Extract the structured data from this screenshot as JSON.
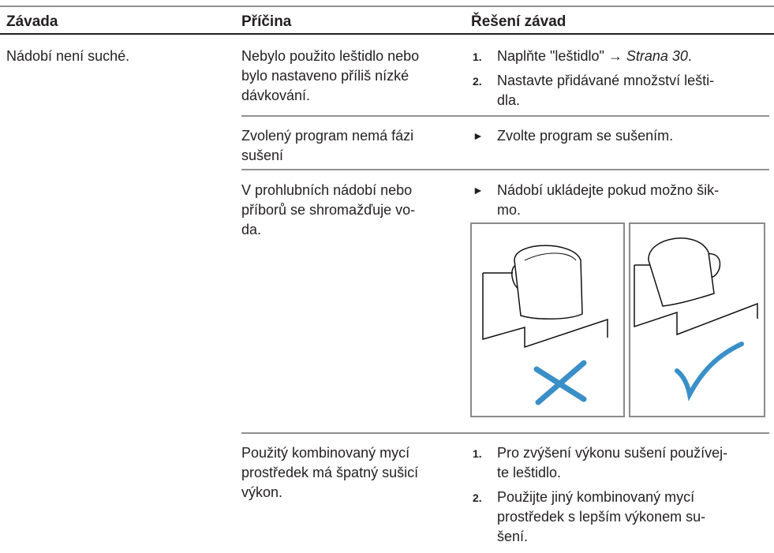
{
  "table": {
    "headers": [
      "Závada",
      "Příčina",
      "Řešení závad"
    ],
    "fault": [
      "Nádobí není suché."
    ],
    "causes": [
      {
        "text": [
          "Nebylo použito leštidlo nebo",
          "bylo nastaveno příliš nízké",
          "dávkování."
        ],
        "solutions": [
          {
            "marker": "1.",
            "lines": [
              {
                "text": "Naplňte \"leštidlo\" → ",
                "ref": "Strana 30",
                "end": "."
              }
            ]
          },
          {
            "marker": "2.",
            "lines": [
              "Nastavte přidávané množství lešti-",
              "dla."
            ]
          }
        ]
      },
      {
        "text": [
          "Zvolený program nemá fázi",
          "sušení"
        ],
        "solutions": [
          {
            "marker": "►",
            "lines": [
              "Zvolte program se sušením."
            ]
          }
        ]
      },
      {
        "text": [
          "V prohlubních nádobí nebo",
          "příborů se shromažďuje vo-",
          "da."
        ],
        "solutions": [
          {
            "marker": "►",
            "lines": [
              "Nádobí ukládejte pokud možno šik-",
              "mo."
            ]
          }
        ]
      },
      {
        "text": [
          "Použitý kombinovaný mycí",
          "prostředek má špatný sušicí",
          "výkon."
        ],
        "solutions": [
          {
            "marker": "1.",
            "lines": [
              "Pro zvýšení výkonu sušení používej-",
              "te leštidlo."
            ]
          },
          {
            "marker": "2.",
            "lines": [
              "Použijte jiný kombinovaný mycí",
              "prostředek s lepším výkonem su-",
              "šení."
            ]
          }
        ]
      }
    ]
  }
}
